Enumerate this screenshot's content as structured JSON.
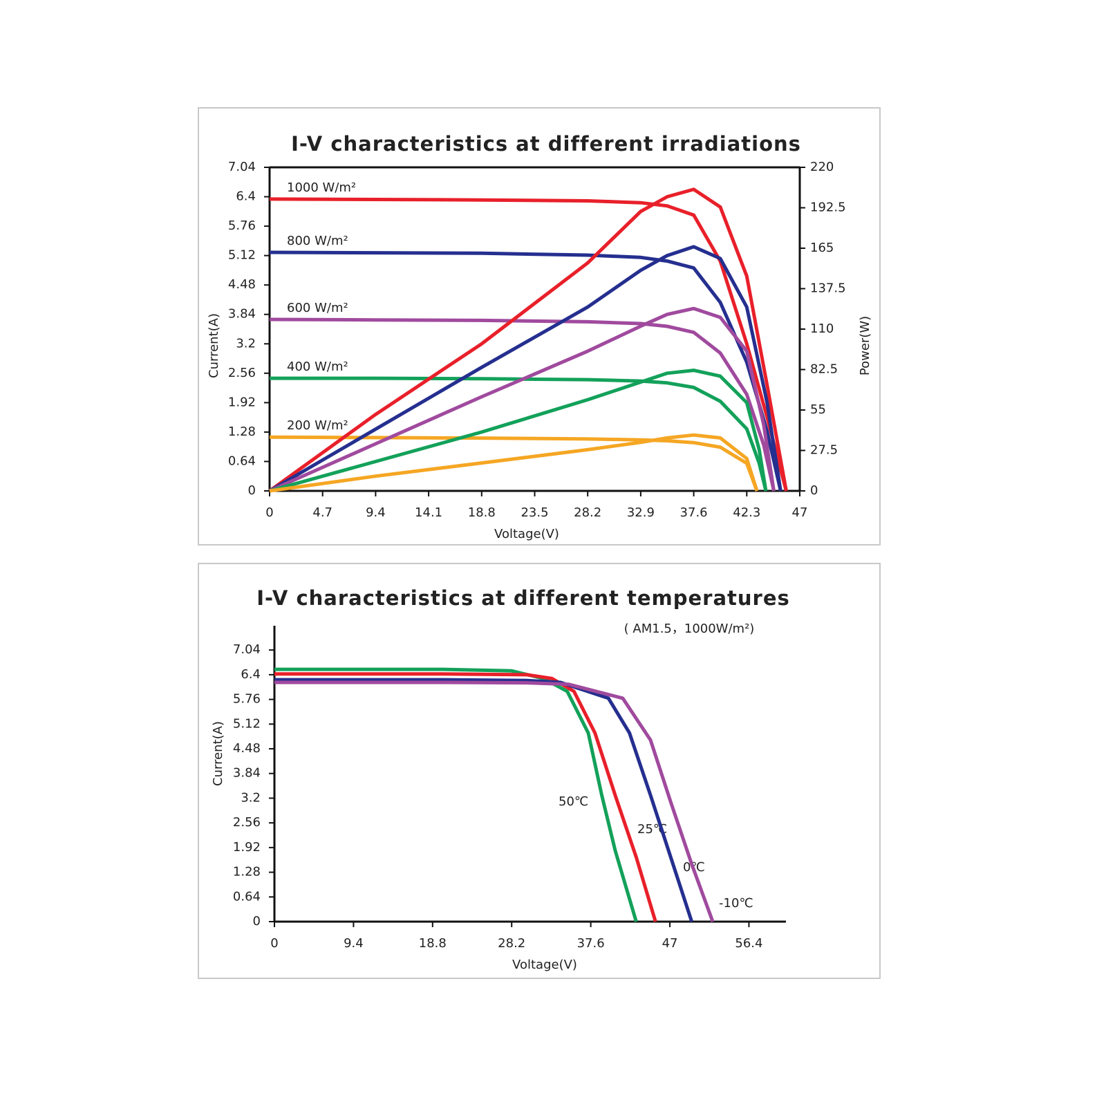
{
  "chart_data": [
    {
      "type": "line",
      "title": "I-V characteristics at different irradiations",
      "x_label": "Voltage(V)",
      "y_label": "Current(A)",
      "y2_label": "Power(W)",
      "xlim": [
        0,
        47
      ],
      "xticks": [
        0,
        4.7,
        9.4,
        14.1,
        18.8,
        23.5,
        28.2,
        32.9,
        37.6,
        42.3,
        47
      ],
      "ylim": [
        0,
        7.04
      ],
      "yticks": [
        0,
        0.64,
        1.28,
        1.92,
        2.56,
        3.2,
        3.84,
        4.48,
        5.12,
        5.76,
        6.4,
        7.04
      ],
      "y2lim": [
        0,
        220
      ],
      "y2ticks": [
        0,
        27.5,
        55,
        82.5,
        110,
        137.5,
        165,
        192.5,
        220
      ],
      "series": [
        {
          "name": "1000 W/m²",
          "color": "#e8202a",
          "x": [
            0,
            9.4,
            18.8,
            28.2,
            32.9,
            35.25,
            37.6,
            39.95,
            42.3,
            44.1,
            45.8
          ],
          "values": [
            6.35,
            6.34,
            6.33,
            6.31,
            6.27,
            6.2,
            6.0,
            5.0,
            3.2,
            1.6,
            0
          ]
        },
        {
          "name": "800 W/m²",
          "color": "#252f8f",
          "x": [
            0,
            9.4,
            18.8,
            28.2,
            32.9,
            35.25,
            37.6,
            39.95,
            42.3,
            44.1,
            45.3
          ],
          "values": [
            5.19,
            5.18,
            5.17,
            5.13,
            5.08,
            5.0,
            4.85,
            4.1,
            2.8,
            1.3,
            0
          ]
        },
        {
          "name": "600 W/m²",
          "color": "#a04a9e",
          "x": [
            0,
            9.4,
            18.8,
            28.2,
            32.9,
            35.25,
            37.6,
            39.95,
            42.3,
            43.8,
            44.7
          ],
          "values": [
            3.73,
            3.72,
            3.71,
            3.68,
            3.64,
            3.58,
            3.45,
            3.0,
            2.1,
            1.0,
            0
          ]
        },
        {
          "name": "400 W/m²",
          "color": "#13a15a",
          "x": [
            0,
            9.4,
            18.8,
            28.2,
            32.9,
            35.25,
            37.6,
            39.95,
            42.3,
            43.4,
            44.0
          ],
          "values": [
            2.45,
            2.45,
            2.44,
            2.42,
            2.39,
            2.35,
            2.25,
            1.95,
            1.35,
            0.6,
            0
          ]
        },
        {
          "name": "200 W/m²",
          "color": "#f5a623",
          "x": [
            0,
            9.4,
            18.8,
            28.2,
            32.9,
            35.25,
            37.6,
            39.95,
            42.3,
            43.2
          ],
          "values": [
            1.17,
            1.16,
            1.15,
            1.13,
            1.11,
            1.09,
            1.05,
            0.95,
            0.6,
            0
          ]
        },
        {
          "color": "#e8202a",
          "axis": "y2",
          "x": [
            0,
            9.4,
            18.8,
            28.2,
            32.9,
            35.25,
            37.6,
            39.95,
            42.3,
            44.1,
            45.8
          ],
          "values": [
            0,
            52,
            100,
            155,
            190,
            200,
            205,
            193,
            146,
            72,
            0
          ]
        },
        {
          "color": "#252f8f",
          "axis": "y2",
          "x": [
            0,
            9.4,
            18.8,
            28.2,
            32.9,
            35.25,
            37.6,
            39.95,
            42.3,
            44.1,
            45.3
          ],
          "values": [
            0,
            42,
            84,
            125,
            150,
            160,
            166,
            158,
            125,
            60,
            0
          ]
        },
        {
          "color": "#a04a9e",
          "axis": "y2",
          "x": [
            0,
            9.4,
            18.8,
            28.2,
            32.9,
            35.25,
            37.6,
            39.95,
            42.3,
            43.8,
            44.7
          ],
          "values": [
            0,
            32,
            64,
            95,
            112,
            120,
            124,
            118,
            95,
            45,
            0
          ]
        },
        {
          "color": "#13a15a",
          "axis": "y2",
          "x": [
            0,
            9.4,
            18.8,
            28.2,
            32.9,
            35.25,
            37.6,
            39.95,
            42.3,
            43.4,
            44.0
          ],
          "values": [
            0,
            20,
            40,
            62,
            74,
            80,
            82,
            78,
            60,
            28,
            0
          ]
        },
        {
          "color": "#f5a623",
          "axis": "y2",
          "x": [
            0,
            9.4,
            18.8,
            28.2,
            32.9,
            35.25,
            37.6,
            39.95,
            42.3,
            43.2
          ],
          "values": [
            0,
            10,
            19,
            28,
            33,
            36,
            38,
            36,
            22,
            0
          ]
        }
      ]
    },
    {
      "type": "line",
      "title": "I-V characteristics at different temperatures",
      "subtitle": "( AM1.5，1000W/m²)",
      "x_label": "Voltage(V)",
      "y_label": "Current(A)",
      "xlim": [
        0,
        60.8
      ],
      "xticks": [
        0,
        9.4,
        18.8,
        28.2,
        37.6,
        47,
        56.4
      ],
      "ylim": [
        0,
        7.67
      ],
      "yticks": [
        0,
        0.64,
        1.28,
        1.92,
        2.56,
        3.2,
        3.84,
        4.48,
        5.12,
        5.76,
        6.4,
        7.04
      ],
      "series": [
        {
          "name": "50℃",
          "color": "#13a15a",
          "x": [
            0,
            10,
            20,
            28.2,
            32,
            34.8,
            37.3,
            38.9,
            40.5,
            43.0
          ],
          "values": [
            6.54,
            6.54,
            6.54,
            6.5,
            6.3,
            5.97,
            4.89,
            3.28,
            1.85,
            0
          ]
        },
        {
          "name": "25℃",
          "color": "#e8202a",
          "x": [
            0,
            10,
            20,
            30,
            33,
            35.6,
            38.1,
            40.5,
            43,
            45.3
          ],
          "values": [
            6.42,
            6.42,
            6.42,
            6.4,
            6.3,
            5.97,
            4.89,
            3.28,
            1.67,
            0
          ]
        },
        {
          "name": "0℃",
          "color": "#252f8f",
          "x": [
            0,
            10,
            20,
            30,
            34,
            39.7,
            42.2,
            44.7,
            47.1,
            49.6
          ],
          "values": [
            6.27,
            6.27,
            6.27,
            6.25,
            6.2,
            5.79,
            4.89,
            3.28,
            1.67,
            0
          ]
        },
        {
          "name": "-10℃",
          "color": "#a04a9e",
          "x": [
            0,
            10,
            20,
            30,
            35,
            41.4,
            44.7,
            47.1,
            49.6,
            52.1
          ],
          "values": [
            6.2,
            6.2,
            6.2,
            6.19,
            6.15,
            5.79,
            4.71,
            3.1,
            1.49,
            0
          ]
        }
      ]
    }
  ]
}
